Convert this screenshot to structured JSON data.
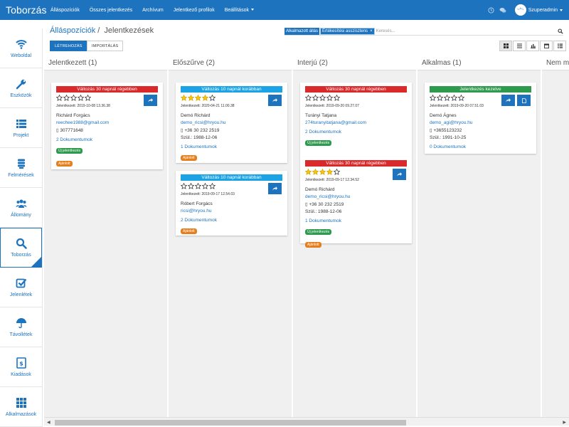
{
  "app": {
    "brand": "Toborzás"
  },
  "nav": [
    "Álláspozíciók",
    "Összes jelentkezés",
    "Archívum",
    "Jelentkező profilok",
    "Beállítások"
  ],
  "user": {
    "name": "Szuperadmin",
    "avatar_text": "~^~"
  },
  "sidebar": [
    {
      "label": "Weboldal",
      "icon": "wifi-icon"
    },
    {
      "label": "Eszközök",
      "icon": "wrench-icon"
    },
    {
      "label": "Projekt",
      "icon": "list-icon"
    },
    {
      "label": "Felmérések",
      "icon": "stack-icon"
    },
    {
      "label": "Állomány",
      "icon": "users-icon"
    },
    {
      "label": "Toborzás",
      "icon": "search-icon",
      "active": true
    },
    {
      "label": "Jelenlétek",
      "icon": "checkbox-icon"
    },
    {
      "label": "Távollétek",
      "icon": "umbrella-icon"
    },
    {
      "label": "Kiadások",
      "icon": "money-icon"
    },
    {
      "label": "Alkalmazások",
      "icon": "grid-icon"
    }
  ],
  "breadcrumb": {
    "parent": "Álláspozíciók",
    "separator": "/",
    "current": "Jelentkezések"
  },
  "search": {
    "tag_label": "Alkalmazott állás",
    "tag_value": "Értékesítési asszisztens",
    "tag_close": "×",
    "placeholder": "Keresés..."
  },
  "buttons": {
    "create": "LÉTREHOZÁS",
    "import": "IMPORTÁLÁS"
  },
  "colors": {
    "primary": "#1e73be",
    "red": "#d9292b",
    "blue": "#1ba3e6",
    "green": "#2e9a4d",
    "orange": "#e67e1d",
    "star": "#f5c518"
  },
  "columns": [
    {
      "title": "Jelentkezett (1)",
      "cards": [
        {
          "banner": "Változás 30 napnál régebben",
          "banner_color": "red",
          "rating": 0,
          "meta": "Jelentkezett: 2019-10-08 13.36.38",
          "name": "Richárd Forgács",
          "email": "reechee1988@gmail.com",
          "phone": "307771648",
          "birth": "",
          "docs": "2 Dokumentumok",
          "badges": [
            {
              "text": "Új jelentkezés",
              "color": "green"
            },
            {
              "text": "Ajánlott",
              "color": "orange"
            }
          ],
          "actions": [
            "share"
          ]
        }
      ]
    },
    {
      "title": "Előszűrve (2)",
      "cards": [
        {
          "banner": "Változás 10 napnál korábban",
          "banner_color": "blue",
          "rating": 4,
          "meta": "Jelentkezett: 2020-04-21 11.00.38",
          "name": "Demó Richárd",
          "email": "demo_ricsi@hryou.hu",
          "phone": "+36 30 232 2519",
          "birth": "Szül.: 1988-12-06",
          "docs": "1 Dokumentumok",
          "badges": [
            {
              "text": "Ajánlott",
              "color": "orange"
            }
          ],
          "actions": [
            "share"
          ]
        },
        {
          "banner": "Változás 10 napnál korábban",
          "banner_color": "blue",
          "rating": 0,
          "meta": "Jelentkezett: 2019-09-17 12.54.03",
          "name": "Róbert Forgács",
          "email": "ricsi@hryou.hu",
          "phone": "",
          "birth": "",
          "docs": "2 Dokumentumok",
          "badges": [
            {
              "text": "Ajánlott",
              "color": "orange"
            }
          ],
          "actions": [
            "share"
          ]
        }
      ]
    },
    {
      "title": "Interjú (2)",
      "cards": [
        {
          "banner": "Változás 30 napnál régebben",
          "banner_color": "red",
          "rating": 0,
          "meta": "Jelentkezett: 2019-09-20 09.27.07",
          "name": "Turányi Tatjana",
          "email": "274turanyitatjana@gmail.com",
          "phone": "",
          "birth": "",
          "docs": "2 Dokumentumok",
          "badges": [
            {
              "text": "Új jelentkezés",
              "color": "green"
            }
          ],
          "actions": []
        },
        {
          "banner": "Változás 30 napnál régebben",
          "banner_color": "red",
          "rating": 4,
          "meta": "Jelentkezett: 2019-09-17 12.34.52",
          "name": "Demó Richárd",
          "email": "demo_ricsi@hryou.hu",
          "phone": "+36 30 232 2519",
          "birth": "Szül.: 1988-12-06",
          "docs": "1 Dokumentumok",
          "badges": [
            {
              "text": "Új jelentkezés",
              "color": "green"
            },
            {
              "text": "Ajánlott",
              "color": "orange"
            }
          ],
          "actions": [
            "share"
          ]
        }
      ]
    },
    {
      "title": "Alkalmas (1)",
      "cards": [
        {
          "banner": "Jelentkezés kezelve",
          "banner_color": "green",
          "rating": 0,
          "meta": "Jelentkezett: 2019-09-20 07.51.03",
          "name": "Demó Ágnes",
          "email": "demo_agi@hryou.hu",
          "phone": "+3655123232",
          "birth": "Szül.: 1991-10-25",
          "docs": "0 Dokumentumok",
          "badges": [],
          "actions": [
            "share",
            "doc"
          ]
        }
      ]
    },
    {
      "title": "Nem m",
      "cards": []
    }
  ]
}
